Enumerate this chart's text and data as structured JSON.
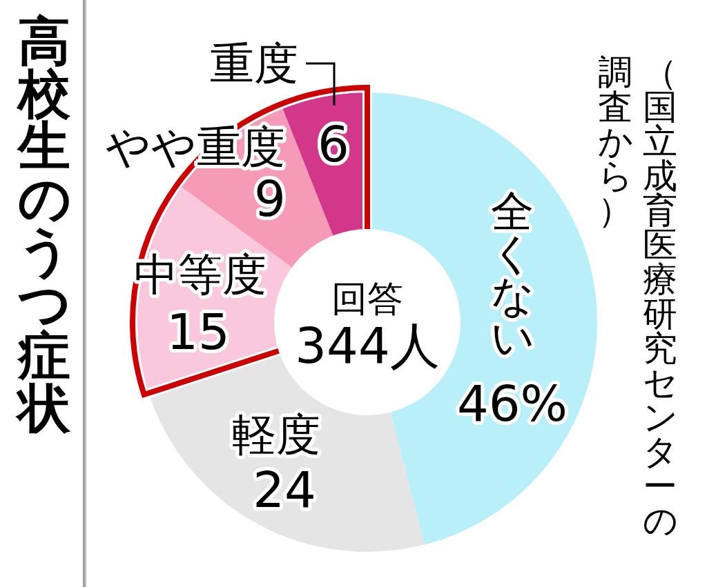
{
  "chart_data": {
    "type": "donut",
    "title": "高校生のうつ症状",
    "categories": [
      "全くない",
      "軽度",
      "中等度",
      "やや重度",
      "重度"
    ],
    "values": [
      46,
      24,
      15,
      9,
      6
    ],
    "colors": [
      "#b8eff9",
      "#e5e5e5",
      "#f9c8dd",
      "#f59bb8",
      "#d2378a"
    ],
    "value_labels": [
      "46%",
      "24",
      "15",
      "9",
      "6"
    ],
    "annotations": [
      "（国立成育医療研究センターの調査から）",
      "回答\n344人"
    ],
    "legend": false
  }
}
